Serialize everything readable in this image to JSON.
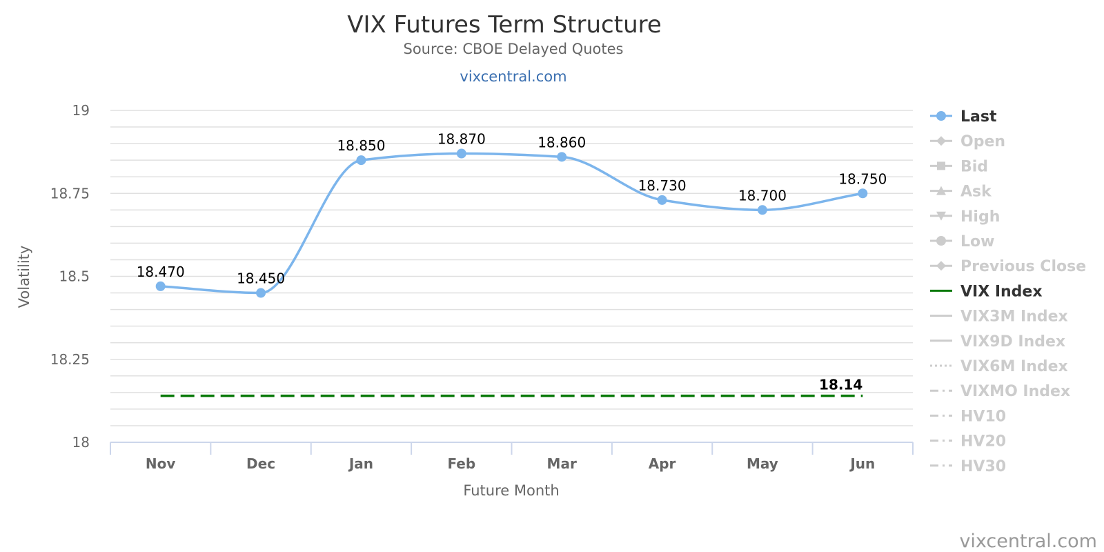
{
  "chart_data": {
    "type": "line",
    "title": "VIX Futures Term Structure",
    "subtitle": "Source: CBOE Delayed Quotes",
    "link_text": "vixcentral.com",
    "credit": "vixcentral.com",
    "xlabel": "Future Month",
    "ylabel": "Volatility",
    "ylim": [
      18,
      19
    ],
    "yticks": [
      18,
      18.25,
      18.5,
      18.75,
      19
    ],
    "ytick_labels": [
      "18",
      "18.25",
      "18.5",
      "18.75",
      "19"
    ],
    "minor_grid_step": 0.05,
    "grid": true,
    "legend_position": "right",
    "categories": [
      "Nov",
      "Dec",
      "Jan",
      "Feb",
      "Mar",
      "Apr",
      "May",
      "Jun"
    ],
    "series": [
      {
        "name": "Last",
        "values": [
          18.47,
          18.45,
          18.85,
          18.87,
          18.86,
          18.73,
          18.7,
          18.75
        ],
        "labels": [
          "18.470",
          "18.450",
          "18.850",
          "18.870",
          "18.860",
          "18.730",
          "18.700",
          "18.750"
        ],
        "color": "#7cb5ec",
        "style": "spline"
      },
      {
        "name": "VIX Index",
        "value": 18.14,
        "label": "18.14",
        "color": "#0a7a0a",
        "style": "dashed"
      }
    ],
    "legend": [
      {
        "name": "Last",
        "symbol": "circle",
        "active": true,
        "color": "#7cb5ec"
      },
      {
        "name": "Open",
        "symbol": "diamond",
        "active": false
      },
      {
        "name": "Bid",
        "symbol": "square",
        "active": false
      },
      {
        "name": "Ask",
        "symbol": "triangle",
        "active": false
      },
      {
        "name": "High",
        "symbol": "triangle-down",
        "active": false
      },
      {
        "name": "Low",
        "symbol": "circle",
        "active": false
      },
      {
        "name": "Previous Close",
        "symbol": "diamond",
        "active": false
      },
      {
        "name": "VIX Index",
        "symbol": "line",
        "active": true,
        "color": "#0a7a0a"
      },
      {
        "name": "VIX3M Index",
        "symbol": "line",
        "active": false
      },
      {
        "name": "VIX9D Index",
        "symbol": "line",
        "active": false
      },
      {
        "name": "VIX6M Index",
        "symbol": "dotted",
        "active": false
      },
      {
        "name": "VIXMO Index",
        "symbol": "dashdot",
        "active": false
      },
      {
        "name": "HV10",
        "symbol": "dashdot",
        "active": false
      },
      {
        "name": "HV20",
        "symbol": "dashdot",
        "active": false
      },
      {
        "name": "HV30",
        "symbol": "dashdot",
        "active": false
      }
    ],
    "inactive_color": "#cccccc",
    "active_text_color": "#333333"
  }
}
